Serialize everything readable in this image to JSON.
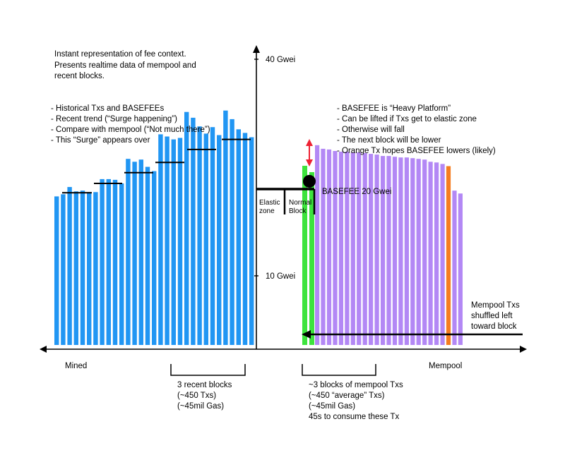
{
  "colors": {
    "mined_bar": "#2196f3",
    "mempool_bar": "#b388f5",
    "green_bar": "#3de33d",
    "orange_bar": "#f57c1f",
    "arrow_red": "#ee2233",
    "line": "#000000"
  },
  "intro": {
    "lines": [
      "Instant representation of fee context.",
      "Presents realtime data of mempool and",
      "recent blocks."
    ]
  },
  "left_notes": {
    "lines": [
      "- Historical Txs and BASEFEEs",
      "- Recent trend (“Surge happening”)",
      "- Compare with mempool (“Not much there”)",
      "- This “Surge” appears over"
    ]
  },
  "right_notes": {
    "lines": [
      "- BASEFEE is “Heavy Platform”",
      "- Can be lifted if Txs get to elastic zone",
      "- Otherwise will fall",
      "- The next block will be lower",
      "- Orange Tx hopes BASEFEE lowers (likely)"
    ]
  },
  "axis": {
    "label_40": "40 Gwei",
    "label_10": "10 Gwei"
  },
  "basefee_label": "BASEFEE 20 Gwei",
  "zones": {
    "elastic": [
      "Elastic",
      "zone"
    ],
    "normal": [
      "Normal",
      "Block"
    ]
  },
  "mempool_note": {
    "lines": [
      "Mempool Txs",
      "shuffled left",
      "toward block"
    ]
  },
  "x_labels": {
    "mined": "Mined",
    "mempool": "Mempool"
  },
  "recent_blocks": {
    "lines": [
      "3 recent blocks",
      "(~450 Txs)",
      "(~45mil Gas)"
    ]
  },
  "mempool_blocks": {
    "lines": [
      "~3 blocks of mempool Txs",
      "(~450 “average” Txs)",
      "(~45mil Gas)",
      "45s to consume these Tx"
    ]
  },
  "mined_bars": [
    21,
    21.3,
    22.3,
    21.7,
    21.8,
    21.6,
    21.6,
    23.4,
    23.4,
    23.3,
    22.8,
    26.2,
    25.8,
    26.1,
    25.1,
    24.5,
    29.6,
    29.3,
    28.9,
    29.1,
    32.7,
    31.9,
    30.7,
    29.7,
    30.6,
    29.5,
    32.9,
    31.7,
    30.3,
    29.8,
    29.2
  ],
  "mined_basefees": [
    21.5,
    22.8,
    24.3,
    25.7,
    27.5,
    28.9
  ],
  "mempool_bars": [
    28.1,
    27.6,
    27.5,
    27.3,
    27.2,
    27.2,
    27.1,
    27.1,
    27.0,
    26.9,
    26.8,
    26.6,
    26.6,
    26.5,
    26.4,
    26.4,
    26.3,
    26.2,
    26.1,
    25.8,
    25.7,
    25.5,
    25.2,
    21.8,
    21.4
  ]
}
